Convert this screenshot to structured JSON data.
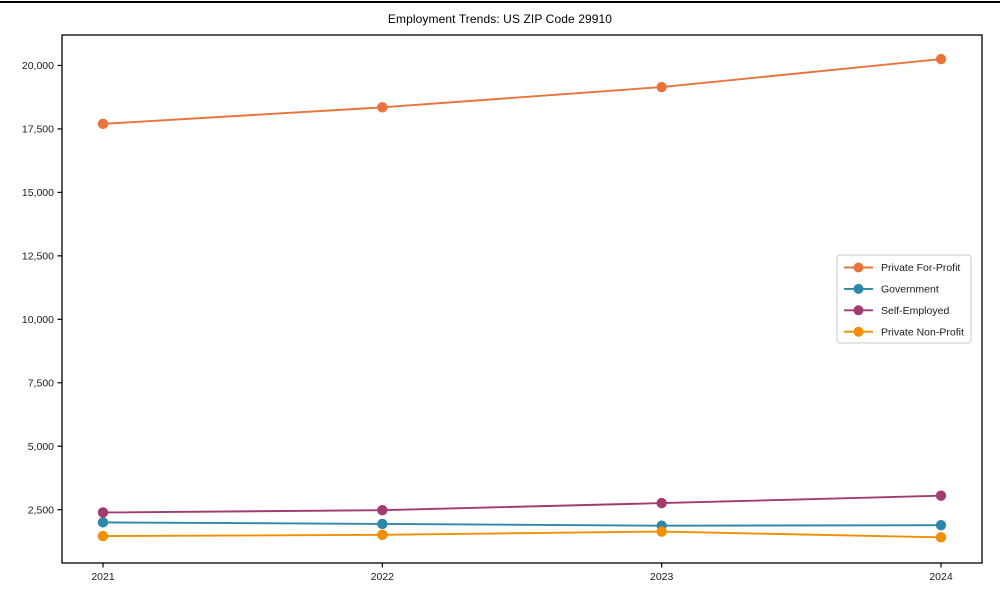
{
  "figure": {
    "background": "#ffffff",
    "frame_color": "#000000",
    "tick_color": "#1a1a1a",
    "legend_border_color": "#c8c8c8"
  },
  "chart_data": {
    "type": "line",
    "title": "Employment Trends: US ZIP Code 29910",
    "xlabel": "",
    "ylabel": "",
    "grid": false,
    "legend_position": "center-right",
    "marker": "circle",
    "categories": [
      "2021",
      "2022",
      "2023",
      "2024"
    ],
    "series": [
      {
        "name": "Private For-Profit",
        "color": "#E8743B",
        "values": [
          17700,
          18350,
          19150,
          20250
        ]
      },
      {
        "name": "Government",
        "color": "#2E86AB",
        "values": [
          2000,
          1940,
          1870,
          1890
        ]
      },
      {
        "name": "Self-Employed",
        "color": "#A23B72",
        "values": [
          2390,
          2480,
          2760,
          3050
        ]
      },
      {
        "name": "Private Non-Profit",
        "color": "#F18F01",
        "values": [
          1460,
          1510,
          1640,
          1410
        ]
      }
    ],
    "yticks": [
      2500,
      5000,
      7500,
      10000,
      12500,
      15000,
      17500,
      20000
    ],
    "ytick_labels": [
      "2,500",
      "5,000",
      "7,500",
      "10,000",
      "12,500",
      "15,000",
      "17,500",
      "20,000"
    ],
    "ylim": [
      400,
      21200
    ]
  }
}
